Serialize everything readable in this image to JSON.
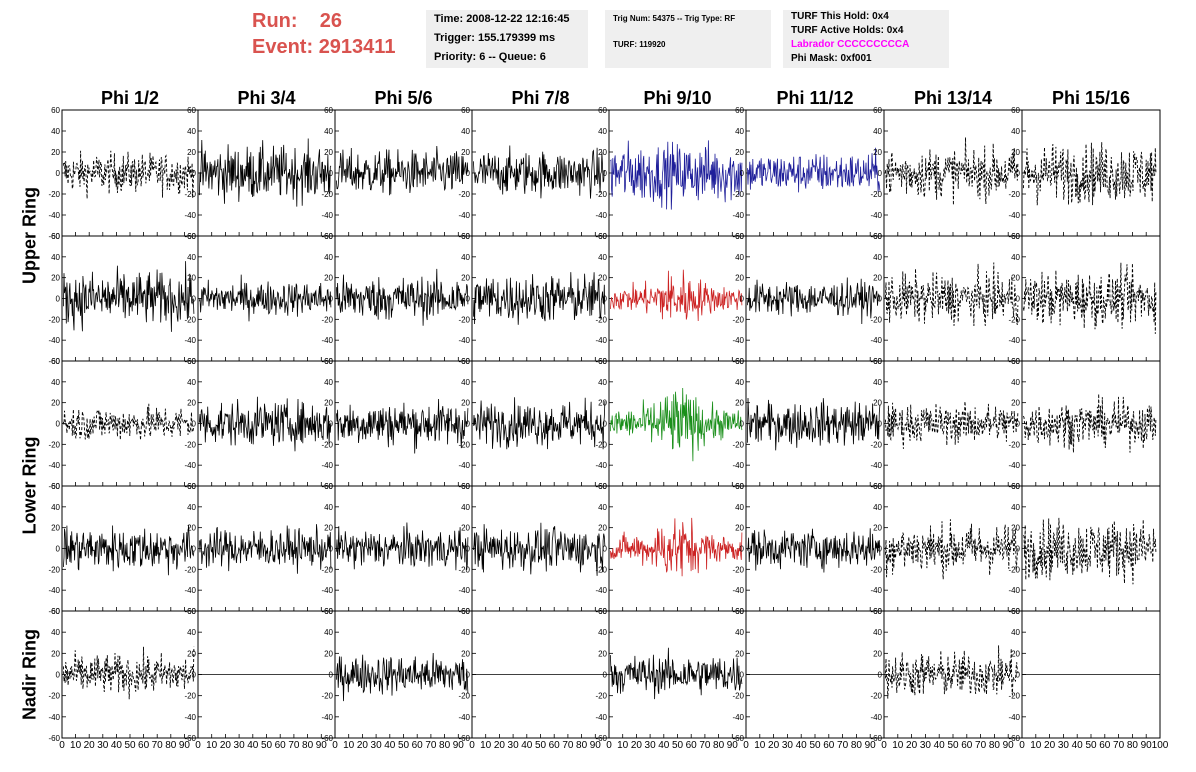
{
  "header": {
    "run_label": "Run:",
    "run_value": "26",
    "event_label": "Event:",
    "event_value": "2913411"
  },
  "time_box": {
    "time": "Time: 2008-12-22 12:16:45",
    "trigger": "Trigger: 155.179399 ms",
    "priority": "Priority: 6 -- Queue: 6"
  },
  "trig_box": {
    "line1": "Trig Num: 54375 -- Trig Type: RF",
    "line2": "TURF: 119920"
  },
  "turf_box": {
    "this_hold": "TURF This Hold: 0x4",
    "active_holds": "TURF Active Holds: 0x4",
    "labrador": "Labrador CCCCCCCCCA",
    "phi_mask": "Phi Mask: 0xf001",
    "labrador_color": "#ff00ff"
  },
  "columns": [
    "Phi 1/2",
    "Phi 3/4",
    "Phi 5/6",
    "Phi 7/8",
    "Phi 9/10",
    "Phi 11/12",
    "Phi 13/14",
    "Phi 15/16"
  ],
  "rings": {
    "upper": "Upper Ring",
    "lower": "Lower Ring",
    "nadir": "Nadir Ring"
  },
  "colors": {
    "run_text": "#d9534f",
    "trace_black": "#000000",
    "trace_blue": "#1f1f9a",
    "trace_red": "#cc2222",
    "trace_green": "#1a8f1a",
    "box_bg": "#efefef"
  },
  "chart_data": {
    "type": "line",
    "title": "",
    "xlim": [
      0,
      100
    ],
    "ylim": [
      -60,
      60
    ],
    "x_ticks": [
      0,
      10,
      20,
      30,
      40,
      50,
      60,
      70,
      80,
      90,
      100
    ],
    "y_ticks": [
      -60,
      -40,
      -20,
      0,
      20,
      40,
      60
    ],
    "rows": [
      {
        "ring": "upper",
        "styles": [
          "dashed",
          "solid",
          "solid",
          "solid",
          "blue",
          "blue",
          "dashed",
          "dashed"
        ],
        "amp": [
          16,
          22,
          18,
          18,
          24,
          16,
          20,
          24
        ]
      },
      {
        "ring": "upper",
        "styles": [
          "solid",
          "solid",
          "solid",
          "solid",
          "red",
          "solid",
          "dashed",
          "dashed"
        ],
        "amp": [
          22,
          14,
          18,
          20,
          18,
          14,
          20,
          22
        ]
      },
      {
        "ring": "lower",
        "styles": [
          "dashed",
          "solid",
          "solid",
          "solid",
          "green",
          "solid",
          "dashed",
          "dashed"
        ],
        "amp": [
          14,
          18,
          18,
          18,
          22,
          18,
          16,
          18
        ]
      },
      {
        "ring": "lower",
        "styles": [
          "solid",
          "solid",
          "solid",
          "solid",
          "red",
          "solid",
          "dashed",
          "dashed"
        ],
        "amp": [
          18,
          16,
          16,
          18,
          20,
          16,
          20,
          24
        ]
      },
      {
        "ring": "nadir",
        "styles": [
          "dashed",
          "flat",
          "solid",
          "flat",
          "solid",
          "flat",
          "dashed",
          "flat"
        ],
        "amp": [
          16,
          0,
          16,
          0,
          16,
          0,
          18,
          0
        ]
      }
    ]
  }
}
